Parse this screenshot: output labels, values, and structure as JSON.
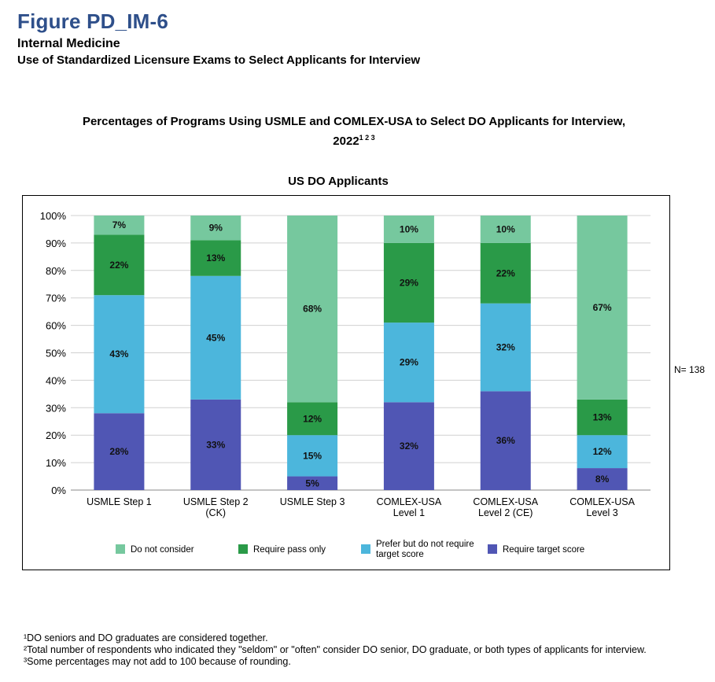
{
  "header": {
    "figure_label": "Figure PD_IM-6",
    "specialty": "Internal Medicine",
    "subtitle": "Use of Standardized Licensure Exams to Select Applicants for Interview"
  },
  "n_label": "N= 138",
  "footnotes": [
    "¹DO seniors and DO graduates are considered together.",
    "²Total number of respondents who indicated they \"seldom\" or \"often\" consider DO senior, DO graduate, or both types of applicants for interview.",
    "³Some percentages may not add to 100 because of rounding."
  ],
  "chart_data": {
    "type": "bar",
    "stacked": true,
    "title": "Percentages of Programs Using USMLE and COMLEX-USA to Select DO Applicants for Interview,",
    "title_line2": "2022",
    "title_superscripts": "1 2 3",
    "subtitle": "US DO Applicants",
    "categories": [
      [
        "USMLE Step 1"
      ],
      [
        "USMLE Step 2",
        "(CK)"
      ],
      [
        "USMLE Step 3"
      ],
      [
        "COMLEX-USA",
        "Level 1"
      ],
      [
        "COMLEX-USA",
        "Level 2 (CE)"
      ],
      [
        "COMLEX-USA",
        "Level 3"
      ]
    ],
    "ylim": [
      0,
      100
    ],
    "yticks": [
      "0%",
      "10%",
      "20%",
      "30%",
      "40%",
      "50%",
      "60%",
      "70%",
      "80%",
      "90%",
      "100%"
    ],
    "grid": true,
    "series": [
      {
        "name": "Require target score",
        "color": "#5056b4",
        "values": [
          28,
          33,
          5,
          32,
          36,
          8
        ]
      },
      {
        "name": "Prefer but do not require target score",
        "color": "#4cb6dc",
        "values": [
          43,
          45,
          15,
          29,
          32,
          12
        ]
      },
      {
        "name": "Require pass only",
        "color": "#2a9a48",
        "values": [
          22,
          13,
          12,
          29,
          22,
          13
        ]
      },
      {
        "name": "Do not consider",
        "color": "#76c89e",
        "values": [
          7,
          9,
          68,
          10,
          10,
          67
        ]
      }
    ],
    "legend_order": [
      3,
      2,
      1,
      0
    ],
    "legend_labels": [
      [
        "Do not consider"
      ],
      [
        "Require pass only"
      ],
      [
        "Prefer but do not require",
        "target score"
      ],
      [
        "Require target score"
      ]
    ]
  }
}
